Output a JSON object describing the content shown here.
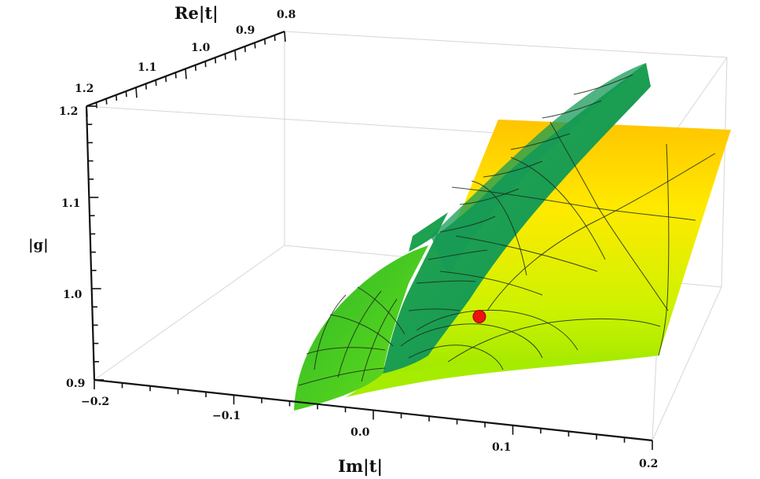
{
  "chart_data": {
    "type": "surface3d",
    "title": "",
    "axes": {
      "x": {
        "label": "Im|t|",
        "range": [
          -0.2,
          0.2
        ],
        "ticks": [
          "−0.2",
          "−0.1",
          "0.0",
          "0.1",
          "0.2"
        ]
      },
      "y": {
        "label": "Re|t|",
        "range": [
          0.8,
          1.2
        ],
        "ticks": [
          "1.2",
          "1.1",
          "1.0",
          "0.9",
          "0.8"
        ]
      },
      "z": {
        "label": "|g|",
        "range": [
          0.9,
          1.2
        ],
        "ticks": [
          "0.9",
          "1.0",
          "1.1",
          "1.2"
        ]
      }
    },
    "surfaces": [
      {
        "role": "yellow-sheet",
        "color_top": "#ffd200",
        "color_bottom": "#aaf000"
      },
      {
        "role": "green-branch",
        "color": "#1fa34a"
      }
    ],
    "marker": {
      "shape": "red-point",
      "color": "#ee1111",
      "im": 0.0,
      "re": 1.0,
      "g": 0.92
    },
    "grid": false
  }
}
